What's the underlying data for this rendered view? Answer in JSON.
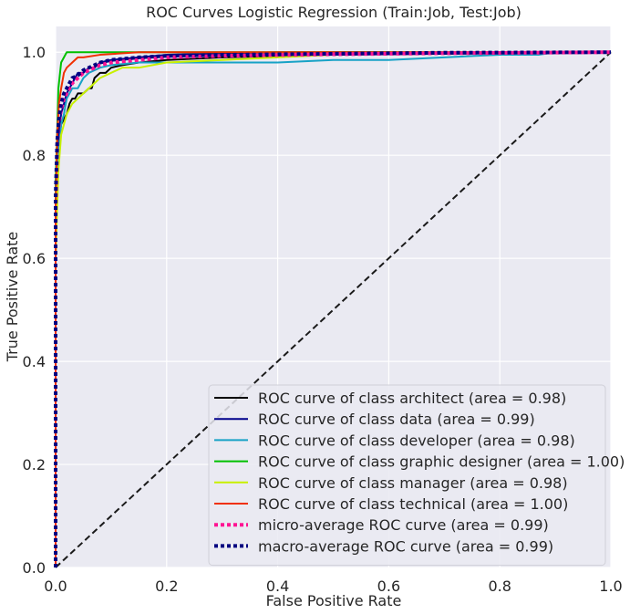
{
  "chart_data": {
    "type": "line",
    "title": "ROC Curves Logistic Regression (Train:Job, Test:Job)",
    "xlabel": "False Positive Rate",
    "ylabel": "True Positive Rate",
    "xlim": [
      0.0,
      1.0
    ],
    "ylim": [
      0.0,
      1.05
    ],
    "xticks": [
      "0.0",
      "0.2",
      "0.4",
      "0.6",
      "0.8",
      "1.0"
    ],
    "yticks": [
      "0.0",
      "0.2",
      "0.4",
      "0.6",
      "0.8",
      "1.0"
    ],
    "grid": true,
    "legend_position": "lower-right",
    "background": "#eaeaf2",
    "series": [
      {
        "name": "ROC curve of class architect (area = 0.98)",
        "color": "#000000",
        "style": "solid",
        "x": [
          0,
          0,
          0.003,
          0.006,
          0.01,
          0.015,
          0.02,
          0.025,
          0.03,
          0.035,
          0.04,
          0.05,
          0.06,
          0.065,
          0.07,
          0.08,
          0.09,
          0.1,
          0.12,
          0.15,
          0.2,
          0.3,
          0.5,
          1.0
        ],
        "y": [
          0,
          0.6,
          0.78,
          0.83,
          0.86,
          0.87,
          0.88,
          0.9,
          0.91,
          0.91,
          0.92,
          0.92,
          0.93,
          0.93,
          0.95,
          0.96,
          0.96,
          0.97,
          0.975,
          0.98,
          0.985,
          0.99,
          0.995,
          1.0
        ]
      },
      {
        "name": "ROC curve of class data (area = 0.99)",
        "color": "#00008b",
        "style": "solid",
        "x": [
          0,
          0,
          0.003,
          0.006,
          0.01,
          0.015,
          0.02,
          0.03,
          0.04,
          0.05,
          0.06,
          0.07,
          0.08,
          0.1,
          0.15,
          0.2,
          0.4,
          1.0
        ],
        "y": [
          0,
          0.7,
          0.8,
          0.85,
          0.88,
          0.9,
          0.92,
          0.94,
          0.96,
          0.96,
          0.97,
          0.97,
          0.98,
          0.985,
          0.99,
          0.995,
          1.0,
          1.0
        ]
      },
      {
        "name": "ROC curve of class developer (area = 0.98)",
        "color": "#17a2c6",
        "style": "solid",
        "x": [
          0,
          0,
          0.005,
          0.01,
          0.015,
          0.02,
          0.03,
          0.04,
          0.05,
          0.06,
          0.08,
          0.1,
          0.15,
          0.2,
          0.3,
          0.4,
          0.5,
          0.6,
          0.7,
          0.8,
          0.87,
          0.9,
          1.0
        ],
        "y": [
          0,
          0.65,
          0.8,
          0.86,
          0.88,
          0.91,
          0.93,
          0.93,
          0.95,
          0.96,
          0.97,
          0.975,
          0.98,
          0.98,
          0.98,
          0.98,
          0.985,
          0.985,
          0.99,
          0.995,
          0.995,
          1.0,
          1.0
        ]
      },
      {
        "name": "ROC curve of class graphic designer (area = 1.00)",
        "color": "#00c000",
        "style": "solid",
        "x": [
          0,
          0,
          0.003,
          0.005,
          0.008,
          0.01,
          0.015,
          0.02,
          0.03,
          0.05,
          0.1,
          0.15,
          1.0
        ],
        "y": [
          0,
          0.75,
          0.85,
          0.93,
          0.96,
          0.98,
          0.99,
          1.0,
          1.0,
          1.0,
          1.0,
          1.0,
          1.0
        ]
      },
      {
        "name": "ROC curve of class manager (area = 0.98)",
        "color": "#c8f000",
        "style": "solid",
        "x": [
          0,
          0,
          0.005,
          0.01,
          0.015,
          0.02,
          0.03,
          0.04,
          0.05,
          0.06,
          0.07,
          0.08,
          0.1,
          0.12,
          0.15,
          0.2,
          0.3,
          0.4,
          0.5,
          0.6,
          1.0
        ],
        "y": [
          0,
          0.6,
          0.77,
          0.84,
          0.86,
          0.88,
          0.9,
          0.91,
          0.92,
          0.93,
          0.94,
          0.95,
          0.96,
          0.97,
          0.97,
          0.98,
          0.985,
          0.99,
          0.995,
          1.0,
          1.0
        ]
      },
      {
        "name": "ROC curve of class technical (area = 1.00)",
        "color": "#f03000",
        "style": "solid",
        "x": [
          0,
          0,
          0.003,
          0.006,
          0.01,
          0.015,
          0.02,
          0.03,
          0.04,
          0.05,
          0.08,
          0.15,
          0.2,
          1.0
        ],
        "y": [
          0,
          0.7,
          0.84,
          0.9,
          0.93,
          0.96,
          0.97,
          0.98,
          0.99,
          0.99,
          0.995,
          1.0,
          1.0,
          1.0
        ]
      },
      {
        "name": "micro-average ROC curve (area = 0.99)",
        "color": "#ff1493",
        "style": "dotted",
        "x": [
          0,
          0,
          0.003,
          0.006,
          0.01,
          0.015,
          0.02,
          0.03,
          0.04,
          0.05,
          0.06,
          0.08,
          0.1,
          0.15,
          0.2,
          0.3,
          0.5,
          0.7,
          1.0
        ],
        "y": [
          0,
          0.7,
          0.82,
          0.86,
          0.89,
          0.91,
          0.92,
          0.94,
          0.95,
          0.96,
          0.965,
          0.975,
          0.98,
          0.985,
          0.99,
          0.993,
          0.996,
          0.998,
          1.0
        ]
      },
      {
        "name": "macro-average ROC curve (area = 0.99)",
        "color": "#000080",
        "style": "dotted",
        "x": [
          0,
          0,
          0.003,
          0.006,
          0.01,
          0.015,
          0.02,
          0.03,
          0.04,
          0.05,
          0.06,
          0.08,
          0.1,
          0.15,
          0.2,
          0.3,
          0.5,
          0.7,
          1.0
        ],
        "y": [
          0,
          0.72,
          0.83,
          0.87,
          0.9,
          0.92,
          0.93,
          0.95,
          0.955,
          0.965,
          0.97,
          0.98,
          0.985,
          0.99,
          0.993,
          0.995,
          0.997,
          0.999,
          1.0
        ]
      },
      {
        "name": "",
        "color": "#1a1a1a",
        "style": "dashed",
        "x": [
          0,
          1
        ],
        "y": [
          0,
          1
        ]
      }
    ]
  }
}
